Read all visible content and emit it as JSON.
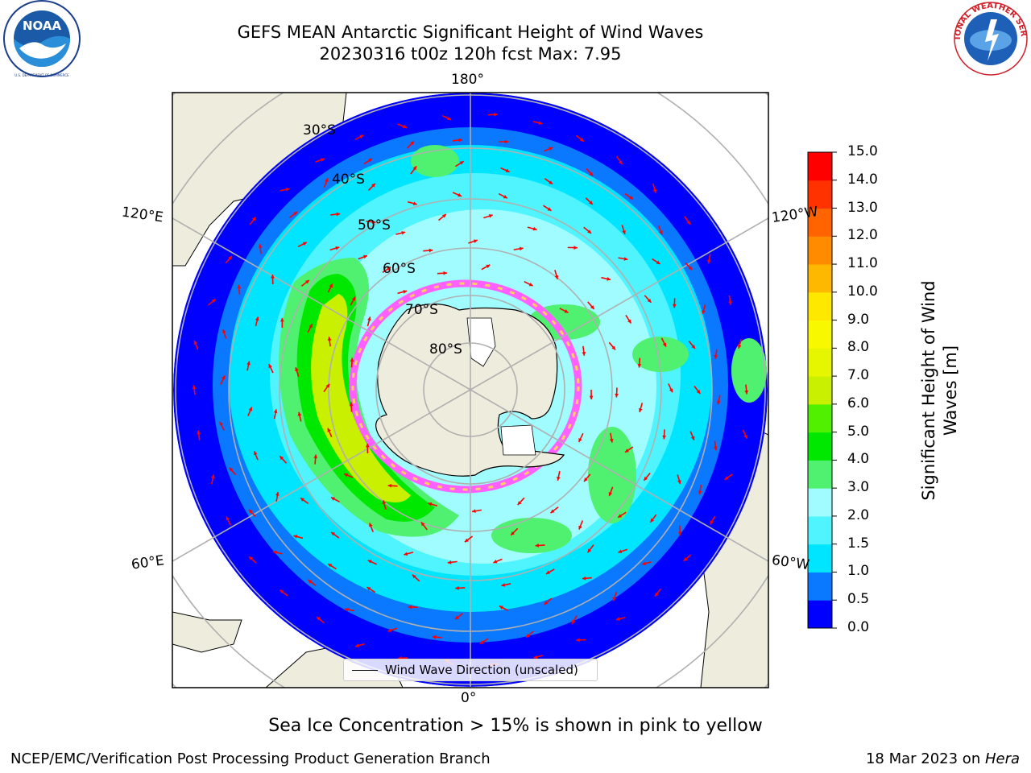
{
  "title": {
    "line1": "GEFS MEAN Antarctic Significant Height of Wind Waves",
    "line2": "20230316 t00z 120h fcst   Max: 7.95"
  },
  "logos": {
    "left_icon": "noaa-logo",
    "left_text": "NOAA",
    "left_ring_text": "NATIONAL OCEANIC AND ATMOSPHERIC ADMINISTRATION · U.S. DEPARTMENT OF COMMERCE",
    "right_icon": "nws-logo",
    "right_ring_text": "NATIONAL WEATHER SERVICE"
  },
  "map": {
    "projection": "south-polar-stereographic",
    "longitude_labels": {
      "top": "180°",
      "bottom": "0°",
      "upper_left": "120°E",
      "upper_right": "120°W",
      "lower_left": "60°E",
      "lower_right": "60°W"
    },
    "latitude_labels": [
      "30°S",
      "40°S",
      "50°S",
      "60°S",
      "70°S",
      "80°S"
    ],
    "colors": {
      "land": "#eeecdc",
      "ocean_missing": "#ffffff",
      "arrow": "#ff0000",
      "grid": "#b0b0b0"
    },
    "arrow_legend": "Wind Wave Direction (unscaled)"
  },
  "colorbar": {
    "title_line1": "Significant Height of Wind",
    "title_line2": "Waves [m]",
    "ticks": [
      "0.0",
      "0.5",
      "1.0",
      "1.5",
      "2.0",
      "3.0",
      "4.0",
      "5.0",
      "6.0",
      "7.0",
      "8.0",
      "9.0",
      "10.0",
      "11.0",
      "12.0",
      "13.0",
      "14.0",
      "15.0"
    ],
    "colors": [
      "#0000ff",
      "#0a78ff",
      "#00e5ff",
      "#50f4ff",
      "#a0fcff",
      "#50f070",
      "#00e800",
      "#50f000",
      "#c8f000",
      "#e6f500",
      "#f8f800",
      "#ffe800",
      "#ffb800",
      "#ff8c00",
      "#ff6400",
      "#ff3200",
      "#ff0000"
    ]
  },
  "notes": {
    "sea_ice": "Sea Ice Concentration > 15% is shown in pink to yellow"
  },
  "footer": {
    "left": "NCEP/EMC/Verification Post Processing Product Generation Branch",
    "right_date": "18 Mar 2023 on ",
    "right_machine": "Hera"
  }
}
